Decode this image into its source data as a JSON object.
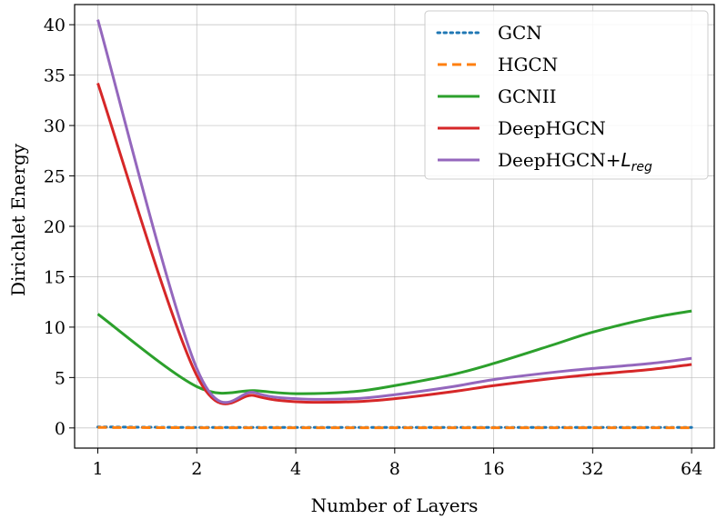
{
  "chart_data": {
    "type": "line",
    "title": "",
    "xlabel": "Number of Layers",
    "ylabel": "Dirichlet Energy",
    "x_scale": "log2",
    "xticks": [
      1,
      2,
      4,
      8,
      16,
      32,
      64
    ],
    "xtick_labels": [
      "1",
      "2",
      "4",
      "8",
      "16",
      "32",
      "64"
    ],
    "yticks": [
      0,
      5,
      10,
      15,
      20,
      25,
      30,
      35,
      40
    ],
    "ytick_labels": [
      "0",
      "5",
      "10",
      "15",
      "20",
      "25",
      "30",
      "35",
      "40"
    ],
    "xlim": [
      0.85,
      75
    ],
    "ylim": [
      -2,
      42
    ],
    "grid": true,
    "legend_position": "top-right",
    "series": [
      {
        "name": "GCN",
        "legend_label": "GCN",
        "color": "#1f77b4",
        "style": "dotted",
        "x": [
          1,
          2,
          3,
          4,
          6,
          8,
          12,
          16,
          24,
          32,
          48,
          64
        ],
        "y": [
          0.1,
          0.05,
          0.05,
          0.05,
          0.05,
          0.05,
          0.05,
          0.05,
          0.05,
          0.05,
          0.05,
          0.05
        ]
      },
      {
        "name": "HGCN",
        "legend_label": "HGCN",
        "color": "#ff7f0e",
        "style": "dashed",
        "x": [
          1,
          2,
          3,
          4,
          6,
          8,
          12,
          16,
          24,
          32,
          48,
          64
        ],
        "y": [
          0.05,
          0.02,
          0.02,
          0.02,
          0.02,
          0.02,
          0.02,
          0.02,
          0.02,
          0.02,
          0.02,
          0.02
        ]
      },
      {
        "name": "GCNII",
        "legend_label": "GCNII",
        "color": "#2ca02c",
        "style": "solid",
        "x": [
          1,
          2,
          3,
          4,
          6,
          8,
          12,
          16,
          24,
          32,
          48,
          64
        ],
        "y": [
          11.3,
          4.1,
          3.7,
          3.4,
          3.6,
          4.2,
          5.3,
          6.4,
          8.2,
          9.5,
          10.9,
          11.6
        ]
      },
      {
        "name": "DeepHGCN",
        "legend_label": "DeepHGCN",
        "color": "#d62728",
        "style": "solid",
        "x": [
          1,
          2,
          3,
          4,
          6,
          8,
          12,
          16,
          24,
          32,
          48,
          64
        ],
        "y": [
          34.2,
          5.2,
          3.2,
          2.6,
          2.6,
          2.9,
          3.6,
          4.2,
          4.9,
          5.3,
          5.8,
          6.3
        ]
      },
      {
        "name": "DeepHGCN+L_reg",
        "legend_label": "DeepHGCN+",
        "legend_math": "L",
        "legend_subscript": "reg",
        "color": "#9467bd",
        "style": "solid",
        "x": [
          1,
          2,
          3,
          4,
          6,
          8,
          12,
          16,
          24,
          32,
          48,
          64
        ],
        "y": [
          40.5,
          5.9,
          3.5,
          2.9,
          2.9,
          3.3,
          4.1,
          4.8,
          5.5,
          5.9,
          6.4,
          6.9
        ]
      }
    ]
  }
}
